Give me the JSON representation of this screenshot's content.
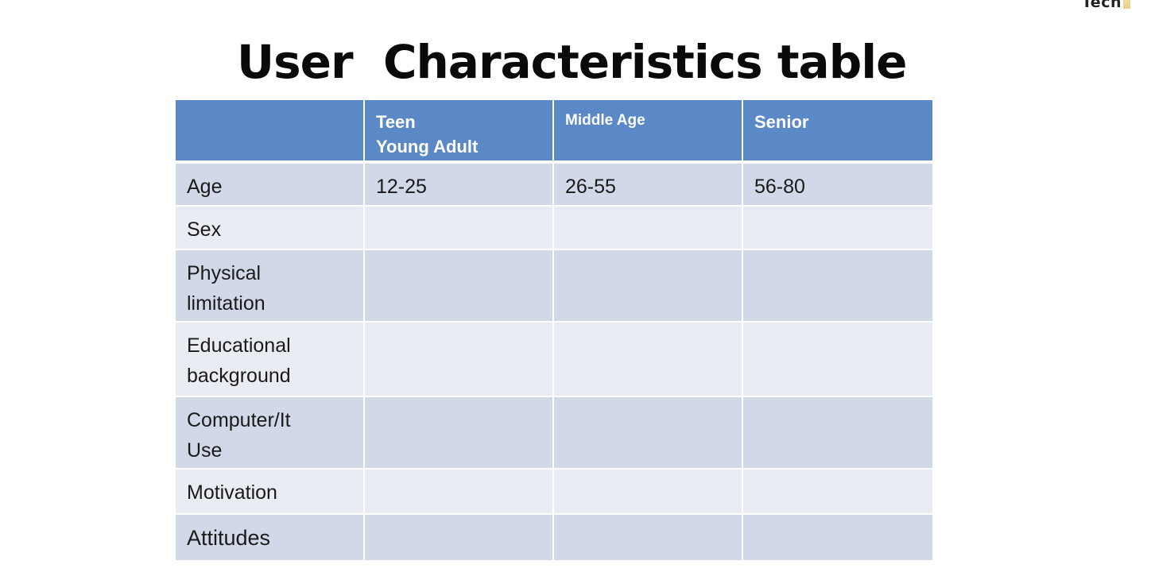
{
  "logo": {
    "text": "Tech"
  },
  "title": "User  Characteristics table",
  "table": {
    "headers": [
      {
        "lines": []
      },
      {
        "lines": [
          "Teen",
          "Young Adult"
        ]
      },
      {
        "lines": [
          "Middle Age"
        ]
      },
      {
        "lines": [
          "Senior"
        ]
      }
    ],
    "rows": [
      {
        "label_lines": [
          "Age"
        ],
        "values": [
          "12-25",
          "26-55",
          "56-80"
        ]
      },
      {
        "label_lines": [
          "Sex"
        ],
        "values": [
          "",
          "",
          ""
        ]
      },
      {
        "label_lines": [
          "Physical",
          "limitation"
        ],
        "values": [
          "",
          "",
          ""
        ]
      },
      {
        "label_lines": [
          "Educational",
          "background"
        ],
        "values": [
          "",
          "",
          ""
        ]
      },
      {
        "label_lines": [
          "Computer/It",
          "Use"
        ],
        "values": [
          "",
          "",
          ""
        ]
      },
      {
        "label_lines": [
          "Motivation"
        ],
        "values": [
          "",
          "",
          ""
        ]
      },
      {
        "label_lines": [
          "Attitudes"
        ],
        "values": [
          "",
          "",
          ""
        ]
      }
    ]
  },
  "colors": {
    "header_bg": "#5b88c6",
    "row_dark": "#d1d8e7",
    "row_light": "#e9ecf3"
  }
}
